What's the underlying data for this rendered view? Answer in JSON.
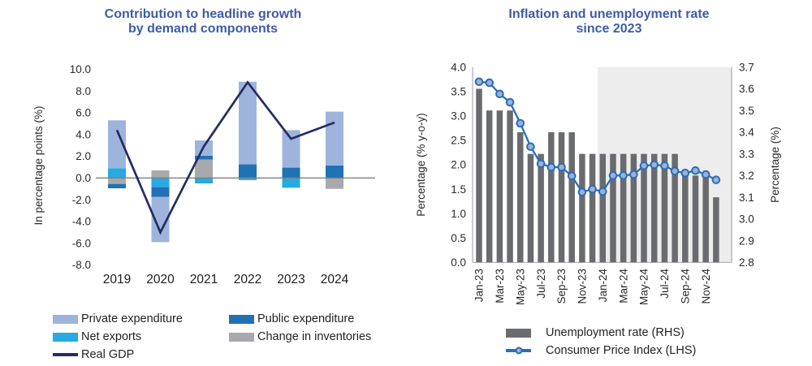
{
  "colors": {
    "title": "#3e5ca6",
    "axis_text": "#2a2a2a",
    "axis_line": "#ababab",
    "zero_line": "#7f7f7f",
    "forecast_shading": "#ededed"
  },
  "chart_data": [
    {
      "type": "bar",
      "subtype": "stacked-bar-with-line",
      "title_lines": [
        "Contribution to headline growth",
        "by demand components"
      ],
      "ylabel": "In percentage points (%)",
      "ylim": [
        -8,
        10
      ],
      "yticks": [
        10,
        8,
        6,
        4,
        2,
        0,
        -2,
        -4,
        -6,
        -8
      ],
      "grid": "off",
      "categories": [
        "2019",
        "2020",
        "2021",
        "2022",
        "2023",
        "2024"
      ],
      "series": [
        {
          "name": "Change in inventories",
          "color": "#a7a9ac",
          "values": [
            -0.55,
            0.7,
            1.7,
            0,
            0,
            -1.0
          ]
        },
        {
          "name": "Net exports",
          "color": "#27aae1",
          "values": [
            0.9,
            -0.85,
            -0.5,
            -0.2,
            -0.9,
            0
          ]
        },
        {
          "name": "Public expenditure",
          "color": "#2171b5",
          "values": [
            -0.4,
            -0.9,
            0.35,
            1.25,
            0.95,
            1.15
          ]
        },
        {
          "name": "Private expenditure",
          "color": "#9fb4dc",
          "values": [
            4.4,
            -4.15,
            1.4,
            7.6,
            3.45,
            4.95
          ]
        }
      ],
      "line_series": {
        "name": "Real GDP",
        "color": "#252c62",
        "values": [
          4.4,
          -5.0,
          2.9,
          8.8,
          3.6,
          5.1
        ]
      },
      "legend": [
        {
          "label": "Private expenditure",
          "type": "box",
          "color": "#9fb4dc"
        },
        {
          "label": "Net exports",
          "type": "box",
          "color": "#27aae1"
        },
        {
          "label": "Real GDP",
          "type": "line",
          "color": "#252c62"
        },
        {
          "label": "Public expenditure",
          "type": "box",
          "color": "#2171b5"
        },
        {
          "label": "Change in inventories",
          "type": "box",
          "color": "#a7a9ac"
        }
      ],
      "legend_position": "bottom"
    },
    {
      "type": "bar",
      "subtype": "bar-line-dual-axis",
      "title_lines": [
        "Inflation and unemployment rate",
        "since 2023"
      ],
      "ylabel_left": "Percentage (% y-o-y)",
      "ylabel_right": "Percentage (%)",
      "ylim_left": [
        0.0,
        4.0
      ],
      "yticks_left": [
        4.0,
        3.5,
        3.0,
        2.5,
        2.0,
        1.5,
        1.0,
        0.5,
        0.0
      ],
      "ylim_right": [
        2.8,
        3.7
      ],
      "yticks_right": [
        3.7,
        3.6,
        3.5,
        3.4,
        3.3,
        3.2,
        3.1,
        3.0,
        2.9,
        2.8
      ],
      "grid": "off",
      "categories": [
        "Jan-23",
        "Feb-23",
        "Mar-23",
        "Apr-23",
        "May-23",
        "Jun-23",
        "Jul-23",
        "Aug-23",
        "Sep-23",
        "Oct-23",
        "Nov-23",
        "Dec-23",
        "Jan-24",
        "Feb-24",
        "Mar-24",
        "Apr-24",
        "May-24",
        "Jun-24",
        "Jul-24",
        "Aug-24",
        "Sep-24",
        "Oct-24",
        "Nov-24",
        "Dec-24"
      ],
      "xtick_every": 2,
      "bars": {
        "name": "Unemployment rate (RHS)",
        "axis": "right",
        "color": "#6a6b6e",
        "values": [
          3.6,
          3.5,
          3.5,
          3.5,
          3.4,
          3.3,
          3.3,
          3.4,
          3.4,
          3.4,
          3.3,
          3.3,
          3.3,
          3.3,
          3.3,
          3.3,
          3.3,
          3.3,
          3.3,
          3.3,
          3.2,
          3.2,
          3.2,
          3.1
        ]
      },
      "line": {
        "name": "Consumer Price Index (LHS)",
        "axis": "left",
        "color": "#2a6db8",
        "marker_fill": "#9fb0d4",
        "values": [
          3.7,
          3.68,
          3.45,
          3.28,
          2.85,
          2.37,
          2.02,
          1.95,
          1.95,
          1.77,
          1.44,
          1.5,
          1.45,
          1.78,
          1.78,
          1.8,
          1.98,
          2.0,
          1.98,
          1.87,
          1.83,
          1.88,
          1.8,
          1.69
        ]
      },
      "shaded_region": {
        "from": "Jan-24",
        "to": "Dec-24",
        "color": "#ededed"
      },
      "legend": [
        {
          "label": "Unemployment rate (RHS)",
          "type": "box",
          "color": "#6a6b6e"
        },
        {
          "label": "Consumer Price Index (LHS)",
          "type": "line-marker",
          "color": "#2a6db8",
          "marker_fill": "#9fb0d4"
        }
      ],
      "legend_position": "bottom"
    }
  ]
}
